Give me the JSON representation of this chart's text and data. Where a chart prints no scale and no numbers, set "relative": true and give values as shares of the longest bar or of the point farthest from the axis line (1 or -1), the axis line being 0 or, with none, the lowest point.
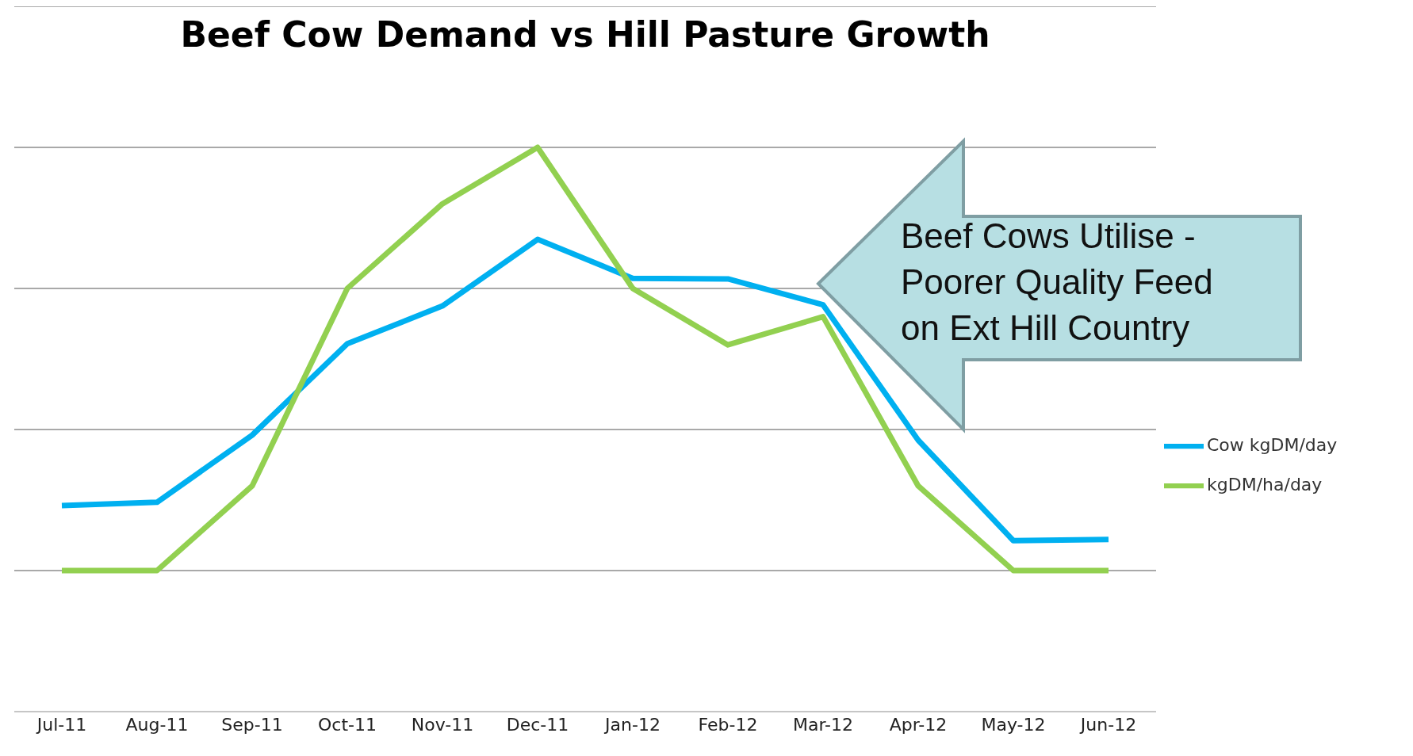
{
  "chart_data": {
    "type": "line",
    "title": "Beef Cow Demand vs Hill Pasture Growth",
    "relative": true,
    "grid": "y",
    "legend": "right",
    "marker": "none",
    "line_style": "solid",
    "categories": [
      "Jul-11",
      "Aug-11",
      "Sep-11",
      "Oct-11",
      "Nov-11",
      "Dec-11",
      "Jan-12",
      "Feb-12",
      "Mar-12",
      "Apr-12",
      "May-12",
      "Jun-12"
    ],
    "series": [
      {
        "name": "Cow kgDM/day",
        "color": "#00b0f0",
        "values": [
          0.365,
          0.371,
          0.49,
          0.652,
          0.719,
          0.837,
          0.768,
          0.767,
          0.721,
          0.481,
          0.303,
          0.305
        ]
      },
      {
        "name": "kgDM/ha/day",
        "color": "#92d050",
        "values": [
          0.25,
          0.25,
          0.4,
          0.75,
          0.9,
          1.0,
          0.75,
          0.65,
          0.7,
          0.4,
          0.25,
          0.25
        ]
      }
    ],
    "annotations": [
      "Beef Cows Utilise -\nPoorer Quality Feed\non Ext Hill Country"
    ]
  }
}
